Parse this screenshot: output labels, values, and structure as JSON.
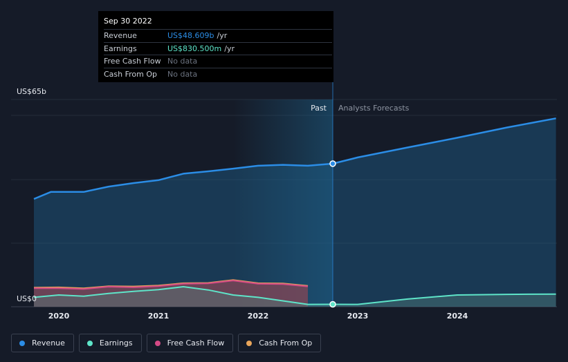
{
  "chart_data": {
    "type": "area",
    "y_axis": {
      "top_label": "US$65b",
      "bottom_label": "US$0",
      "ylim": [
        0,
        65
      ]
    },
    "x_axis": {
      "ticks": [
        "2020",
        "2021",
        "2022",
        "2023",
        "2024"
      ]
    },
    "regions": {
      "past_label": "Past",
      "forecast_label": "Analysts Forecasts"
    },
    "series": [
      {
        "name": "Revenue",
        "color": "#2b8de6",
        "points": [
          [
            2019.75,
            36.6
          ],
          [
            2019.92,
            39.0
          ],
          [
            2020.25,
            39.0
          ],
          [
            2020.5,
            40.8
          ],
          [
            2020.75,
            42.0
          ],
          [
            2021.0,
            43.0
          ],
          [
            2021.25,
            45.2
          ],
          [
            2021.5,
            46.0
          ],
          [
            2021.75,
            46.9
          ],
          [
            2022.0,
            47.9
          ],
          [
            2022.25,
            48.2
          ],
          [
            2022.5,
            47.9
          ],
          [
            2022.75,
            48.6
          ],
          [
            2023.0,
            50.7
          ],
          [
            2023.5,
            54.1
          ],
          [
            2024.0,
            57.4
          ],
          [
            2024.5,
            60.9
          ],
          [
            2024.99,
            64.0
          ]
        ]
      },
      {
        "name": "Earnings",
        "color": "#5ee5c9",
        "points": [
          [
            2019.75,
            3.2
          ],
          [
            2020.0,
            4.0
          ],
          [
            2020.25,
            3.6
          ],
          [
            2020.5,
            4.5
          ],
          [
            2020.75,
            5.2
          ],
          [
            2021.0,
            5.8
          ],
          [
            2021.25,
            6.8
          ],
          [
            2021.5,
            5.7
          ],
          [
            2021.75,
            4.0
          ],
          [
            2022.0,
            3.2
          ],
          [
            2022.25,
            2.0
          ],
          [
            2022.5,
            0.8
          ],
          [
            2022.75,
            0.83
          ],
          [
            2023.0,
            0.8
          ],
          [
            2023.5,
            2.6
          ],
          [
            2024.0,
            4.0
          ],
          [
            2024.5,
            4.2
          ],
          [
            2024.99,
            4.3
          ]
        ]
      },
      {
        "name": "Free Cash Flow",
        "color": "#d44a86",
        "points": [
          [
            2019.75,
            6.3
          ],
          [
            2020.0,
            6.3
          ],
          [
            2020.25,
            6.0
          ],
          [
            2020.5,
            6.8
          ],
          [
            2020.75,
            6.6
          ],
          [
            2021.0,
            7.0
          ],
          [
            2021.25,
            7.8
          ],
          [
            2021.5,
            7.9
          ],
          [
            2021.75,
            8.9
          ],
          [
            2022.0,
            7.8
          ],
          [
            2022.25,
            7.7
          ],
          [
            2022.5,
            6.9
          ]
        ]
      },
      {
        "name": "Cash From Op",
        "color": "#e8a55b",
        "points": [
          [
            2019.75,
            6.5
          ],
          [
            2020.0,
            6.6
          ],
          [
            2020.25,
            6.3
          ],
          [
            2020.5,
            7.0
          ],
          [
            2020.75,
            6.9
          ],
          [
            2021.0,
            7.2
          ],
          [
            2021.25,
            8.0
          ],
          [
            2021.5,
            8.1
          ],
          [
            2021.75,
            9.1
          ],
          [
            2022.0,
            8.0
          ],
          [
            2022.25,
            7.9
          ],
          [
            2022.5,
            7.1
          ]
        ]
      }
    ],
    "highlight": {
      "x": 2022.75,
      "label": "Sep 30 2022"
    }
  },
  "tooltip": {
    "date": "Sep 30 2022",
    "rows": [
      {
        "name": "Revenue",
        "value": "US$48.609b",
        "unit": "/yr",
        "color": "#2b8de6"
      },
      {
        "name": "Earnings",
        "value": "US$830.500m",
        "unit": "/yr",
        "color": "#5ee5c9"
      },
      {
        "name": "Free Cash Flow",
        "value": "No data",
        "unit": "",
        "color": ""
      },
      {
        "name": "Cash From Op",
        "value": "No data",
        "unit": "",
        "color": ""
      }
    ]
  },
  "legend": [
    {
      "name": "Revenue",
      "color": "#2b8de6"
    },
    {
      "name": "Earnings",
      "color": "#5ee5c9"
    },
    {
      "name": "Free Cash Flow",
      "color": "#d44a86"
    },
    {
      "name": "Cash From Op",
      "color": "#e8a55b"
    }
  ]
}
